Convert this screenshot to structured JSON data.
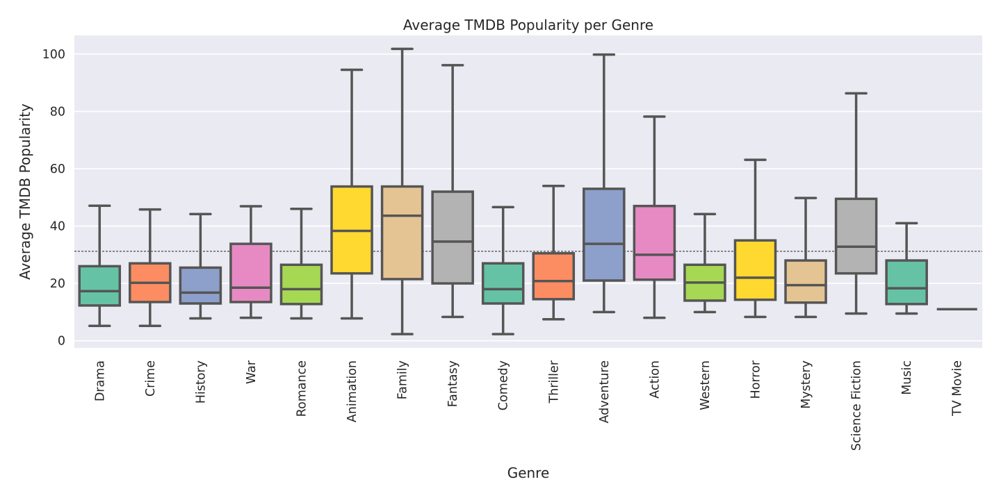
{
  "chart_data": {
    "type": "boxplot",
    "title": "Average TMDB Popularity per Genre",
    "xlabel": "Genre",
    "ylabel": "Average TMDB Popularity",
    "ylim": [
      -2.5,
      106.5
    ],
    "yticks": [
      0,
      20,
      40,
      60,
      80,
      100
    ],
    "reference_line": 31.2,
    "grid": true,
    "palette": [
      "#66c2a5",
      "#fc8d62",
      "#8da0cb",
      "#e78ac3",
      "#a6d854",
      "#ffd92f",
      "#e5c494",
      "#b3b3b3"
    ],
    "background": "#eaeaf2",
    "box_edge_color": "#555555",
    "categories": [
      "Drama",
      "Crime",
      "History",
      "War",
      "Romance",
      "Animation",
      "Family",
      "Fantasy",
      "Comedy",
      "Thriller",
      "Adventure",
      "Action",
      "Western",
      "Horror",
      "Mystery",
      "Science Fiction",
      "Music",
      "TV Movie"
    ],
    "boxes": [
      {
        "whislo": 5.2,
        "q1": 12.3,
        "med": 17.3,
        "q3": 26.0,
        "whishi": 47.1
      },
      {
        "whislo": 5.2,
        "q1": 13.5,
        "med": 20.2,
        "q3": 27.0,
        "whishi": 45.8
      },
      {
        "whislo": 7.8,
        "q1": 13.0,
        "med": 16.8,
        "q3": 25.5,
        "whishi": 44.2
      },
      {
        "whislo": 8.0,
        "q1": 13.5,
        "med": 18.5,
        "q3": 33.8,
        "whishi": 46.9
      },
      {
        "whislo": 7.8,
        "q1": 12.8,
        "med": 18.0,
        "q3": 26.5,
        "whishi": 46.0
      },
      {
        "whislo": 7.8,
        "q1": 23.5,
        "med": 38.3,
        "q3": 53.8,
        "whishi": 94.5
      },
      {
        "whislo": 2.3,
        "q1": 21.5,
        "med": 43.6,
        "q3": 53.8,
        "whishi": 101.8
      },
      {
        "whislo": 8.3,
        "q1": 20.0,
        "med": 34.6,
        "q3": 52.0,
        "whishi": 96.1
      },
      {
        "whislo": 2.3,
        "q1": 13.0,
        "med": 18.0,
        "q3": 27.0,
        "whishi": 46.6
      },
      {
        "whislo": 7.5,
        "q1": 14.5,
        "med": 20.8,
        "q3": 30.5,
        "whishi": 54.0
      },
      {
        "whislo": 10.0,
        "q1": 21.0,
        "med": 33.8,
        "q3": 53.0,
        "whishi": 99.8
      },
      {
        "whislo": 8.0,
        "q1": 21.3,
        "med": 30.0,
        "q3": 47.0,
        "whishi": 78.2
      },
      {
        "whislo": 10.0,
        "q1": 14.0,
        "med": 20.3,
        "q3": 26.5,
        "whishi": 44.2
      },
      {
        "whislo": 8.3,
        "q1": 14.3,
        "med": 22.0,
        "q3": 35.0,
        "whishi": 63.1
      },
      {
        "whislo": 8.3,
        "q1": 13.3,
        "med": 19.4,
        "q3": 28.0,
        "whishi": 49.8
      },
      {
        "whislo": 9.5,
        "q1": 23.5,
        "med": 32.8,
        "q3": 49.5,
        "whishi": 86.3
      },
      {
        "whislo": 9.5,
        "q1": 12.8,
        "med": 18.3,
        "q3": 28.0,
        "whishi": 41.0
      },
      {
        "whislo": 11.0,
        "q1": 11.0,
        "med": 11.0,
        "q3": 11.0,
        "whishi": 11.0
      }
    ]
  }
}
